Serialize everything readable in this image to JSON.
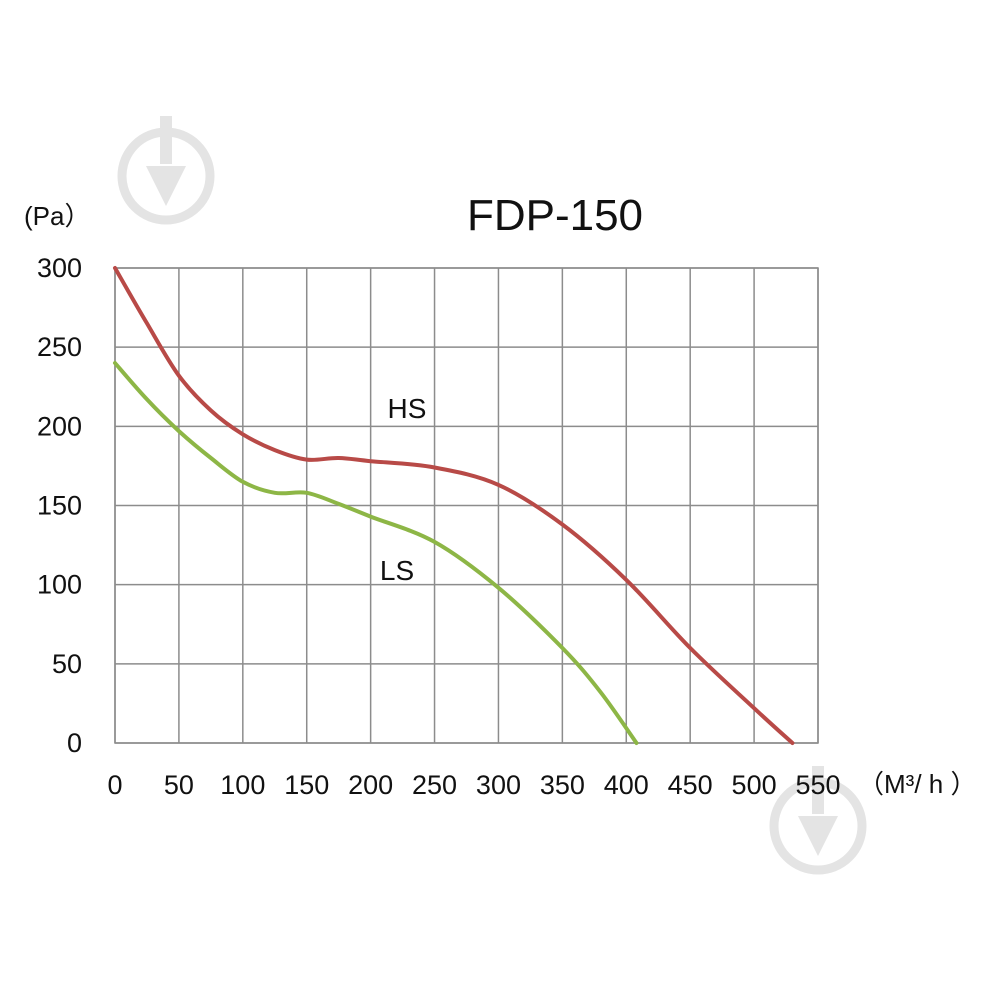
{
  "chart_data": {
    "type": "line",
    "title": "FDP-150",
    "ylabel": "(Pa）",
    "xlabel": "（M³/ h ）",
    "xlim": [
      0,
      550
    ],
    "ylim": [
      0,
      300
    ],
    "x_ticks": [
      "0",
      "50",
      "100",
      "150",
      "200",
      "250",
      "300",
      "350",
      "400",
      "450",
      "500",
      "550"
    ],
    "y_ticks": [
      "0",
      "50",
      "100",
      "150",
      "200",
      "250",
      "300"
    ],
    "grid": true,
    "series": [
      {
        "name": "HS",
        "color": "#b84a47",
        "x": [
          0,
          25,
          50,
          75,
          100,
          125,
          150,
          175,
          200,
          250,
          300,
          350,
          400,
          450,
          500,
          530
        ],
        "y": [
          300,
          265,
          232,
          210,
          195,
          185,
          179,
          180,
          178,
          174,
          163,
          138,
          103,
          60,
          22,
          0
        ]
      },
      {
        "name": "LS",
        "color": "#8db646",
        "x": [
          0,
          25,
          50,
          75,
          100,
          125,
          150,
          175,
          200,
          250,
          300,
          350,
          380,
          408
        ],
        "y": [
          240,
          217,
          197,
          180,
          165,
          158,
          158,
          151,
          143,
          127,
          98,
          60,
          32,
          0
        ]
      }
    ]
  }
}
